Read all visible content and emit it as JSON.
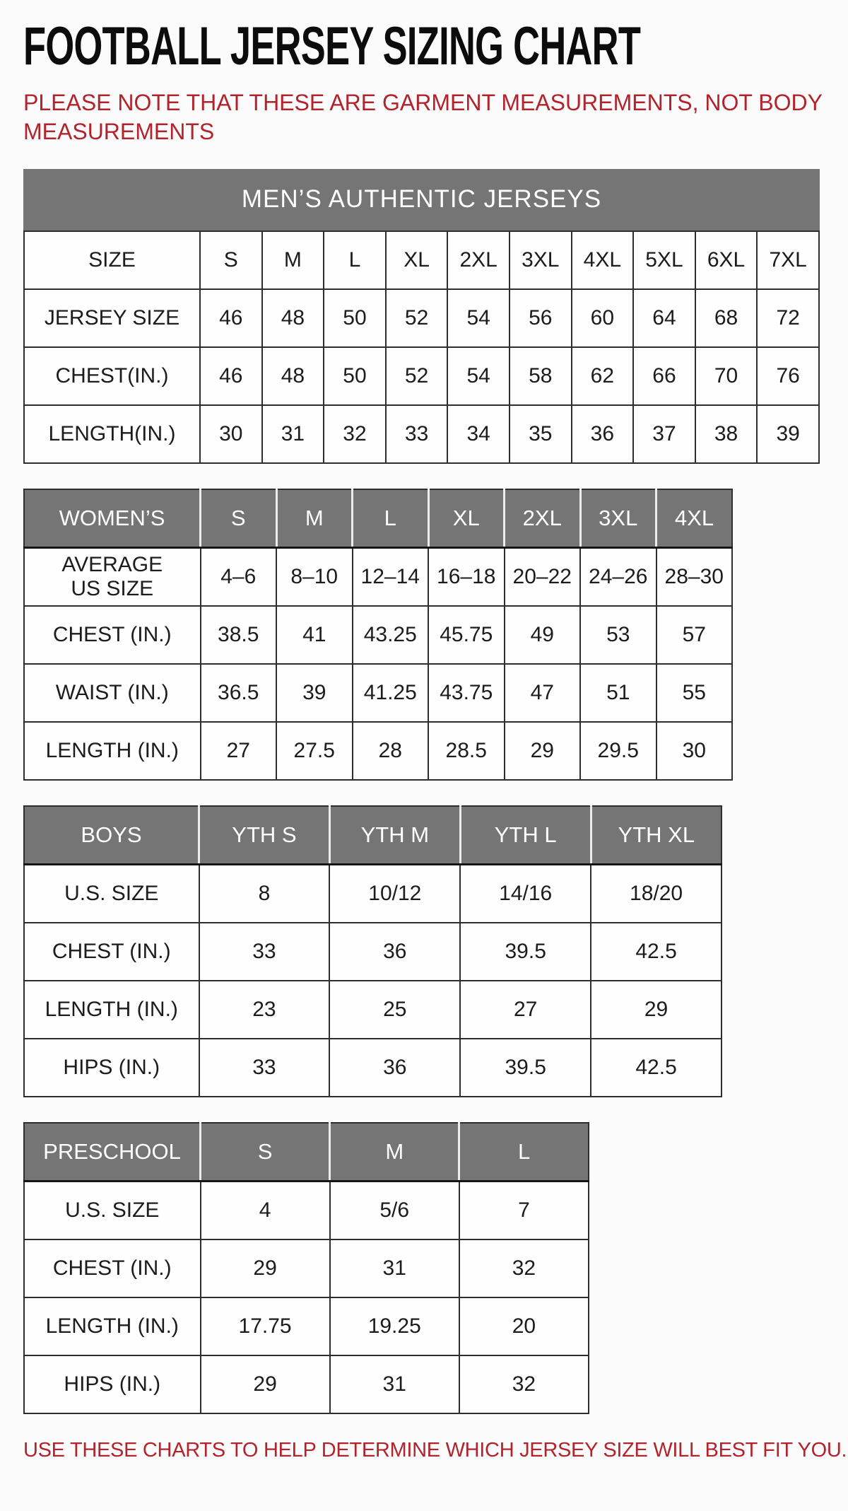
{
  "page": {
    "title": "FOOTBALL JERSEY SIZING CHART",
    "note": "PLEASE NOTE THAT THESE ARE GARMENT MEASUREMENTS, NOT BODY MEASUREMENTS",
    "footer": "USE THESE CHARTS TO HELP DETERMINE WHICH JERSEY SIZE WILL BEST FIT YOU."
  },
  "colors": {
    "accent_red": "#b3232b",
    "header_gray": "#757575",
    "header_text": "#ffffff",
    "grid_line": "#2e2e2e"
  },
  "tables": [
    {
      "id": "mens",
      "banner": "MEN’S AUTHENTIC JERSEYS",
      "header_style": "plain",
      "header_row": {
        "label": "SIZE",
        "cells": [
          "S",
          "M",
          "L",
          "XL",
          "2XL",
          "3XL",
          "4XL",
          "5XL",
          "6XL",
          "7XL"
        ]
      },
      "rows": [
        {
          "label": "JERSEY SIZE",
          "cells": [
            "46",
            "48",
            "50",
            "52",
            "54",
            "56",
            "60",
            "64",
            "68",
            "72"
          ]
        },
        {
          "label": "CHEST(IN.)",
          "cells": [
            "46",
            "48",
            "50",
            "52",
            "54",
            "58",
            "62",
            "66",
            "70",
            "76"
          ]
        },
        {
          "label": "LENGTH(IN.)",
          "cells": [
            "30",
            "31",
            "32",
            "33",
            "34",
            "35",
            "36",
            "37",
            "38",
            "39"
          ]
        }
      ]
    },
    {
      "id": "womens",
      "banner": null,
      "header_style": "gray",
      "header_row": {
        "label": "WOMEN’S",
        "cells": [
          "S",
          "M",
          "L",
          "XL",
          "2XL",
          "3XL",
          "4XL"
        ]
      },
      "rows": [
        {
          "label": "AVERAGE\nUS SIZE",
          "cells": [
            "4–6",
            "8–10",
            "12–14",
            "16–18",
            "20–22",
            "24–26",
            "28–30"
          ]
        },
        {
          "label": "CHEST (IN.)",
          "cells": [
            "38.5",
            "41",
            "43.25",
            "45.75",
            "49",
            "53",
            "57"
          ]
        },
        {
          "label": "WAIST (IN.)",
          "cells": [
            "36.5",
            "39",
            "41.25",
            "43.75",
            "47",
            "51",
            "55"
          ]
        },
        {
          "label": "LENGTH (IN.)",
          "cells": [
            "27",
            "27.5",
            "28",
            "28.5",
            "29",
            "29.5",
            "30"
          ]
        }
      ]
    },
    {
      "id": "boys",
      "banner": null,
      "header_style": "gray",
      "header_row": {
        "label": "BOYS",
        "cells": [
          "YTH S",
          "YTH M",
          "YTH L",
          "YTH XL"
        ]
      },
      "rows": [
        {
          "label": "U.S. SIZE",
          "cells": [
            "8",
            "10/12",
            "14/16",
            "18/20"
          ]
        },
        {
          "label": "CHEST (IN.)",
          "cells": [
            "33",
            "36",
            "39.5",
            "42.5"
          ]
        },
        {
          "label": "LENGTH (IN.)",
          "cells": [
            "23",
            "25",
            "27",
            "29"
          ]
        },
        {
          "label": "HIPS (IN.)",
          "cells": [
            "33",
            "36",
            "39.5",
            "42.5"
          ]
        }
      ]
    },
    {
      "id": "preschool",
      "banner": null,
      "header_style": "gray",
      "header_row": {
        "label": "PRESCHOOL",
        "cells": [
          "S",
          "M",
          "L"
        ]
      },
      "rows": [
        {
          "label": "U.S. SIZE",
          "cells": [
            "4",
            "5/6",
            "7"
          ]
        },
        {
          "label": "CHEST (IN.)",
          "cells": [
            "29",
            "31",
            "32"
          ]
        },
        {
          "label": "LENGTH (IN.)",
          "cells": [
            "17.75",
            "19.25",
            "20"
          ]
        },
        {
          "label": "HIPS (IN.)",
          "cells": [
            "29",
            "31",
            "32"
          ]
        }
      ]
    }
  ]
}
